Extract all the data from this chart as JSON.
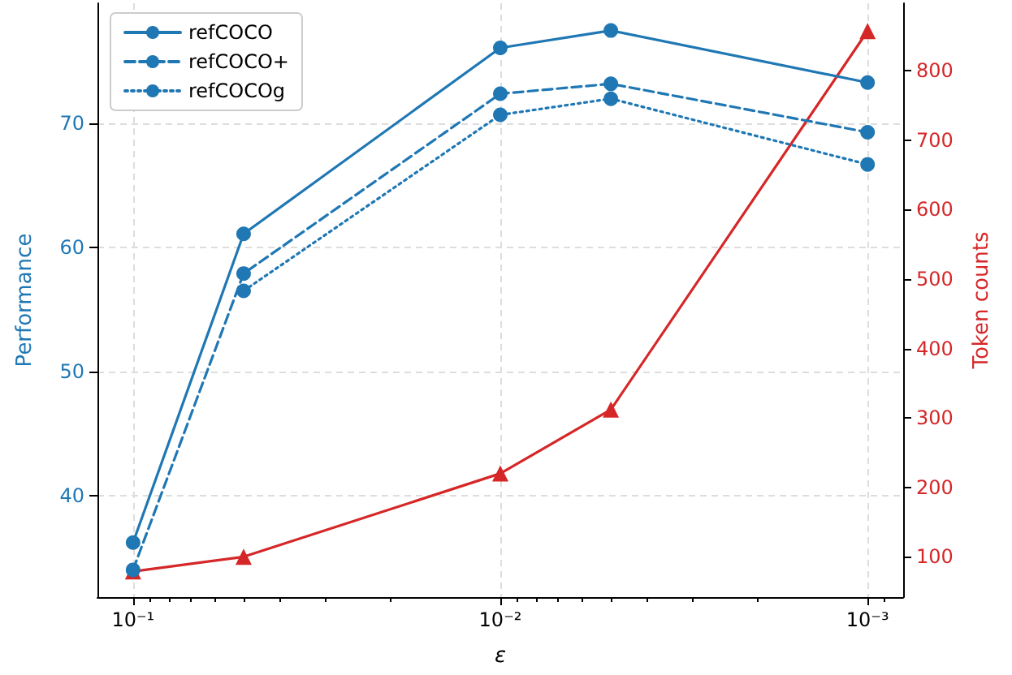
{
  "chart_data": {
    "type": "line",
    "xlabel": "ε",
    "ylabel": "Performance",
    "y2label": "Token counts",
    "x": [
      0.1,
      0.05,
      0.01,
      0.005,
      0.001
    ],
    "log": "x",
    "xlim": [
      0.125,
      0.0008
    ],
    "xticks": [
      {
        "value": 0.1,
        "label": "10⁻¹"
      },
      {
        "value": 0.01,
        "label": "10⁻²"
      },
      {
        "value": 0.001,
        "label": "10⁻³"
      }
    ],
    "ylim": [
      31.8,
      79.7
    ],
    "yticks": [
      40,
      50,
      60,
      70
    ],
    "y2lim": [
      42,
      897
    ],
    "y2ticks": [
      100,
      200,
      300,
      400,
      500,
      600,
      700,
      800
    ],
    "grid": true,
    "legend": "top left",
    "series": [
      {
        "name": "refCOCO",
        "color": "#1f77b4",
        "values": [
          36.2,
          61.1,
          76.1,
          77.5,
          73.3
        ],
        "marker": "circle",
        "line_style": "solid"
      },
      {
        "name": "refCOCO+",
        "color": "#1f77b4",
        "values": [
          34.0,
          57.9,
          72.4,
          73.2,
          69.3
        ],
        "marker": "circle",
        "line_style": "dashed"
      },
      {
        "name": "refCOCOg",
        "color": "#1f77b4",
        "values": [
          null,
          56.5,
          70.7,
          72.0,
          66.7
        ],
        "marker": "circle",
        "line_style": "dotted"
      },
      {
        "color": "#d62728",
        "values": [
          79,
          100,
          220,
          312,
          857
        ],
        "marker": "triangle",
        "line_style": "solid",
        "axis": "y2"
      }
    ]
  }
}
